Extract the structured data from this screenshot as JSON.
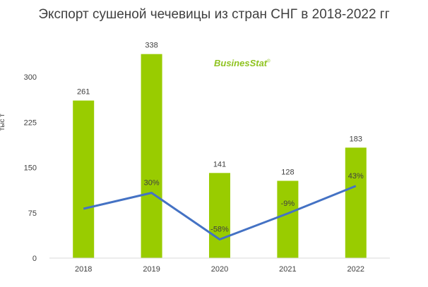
{
  "chart_data": {
    "type": "bar",
    "title": "Экспорт сушеной чечевицы из стран СНГ в 2018-2022 гг",
    "ylabel": "тыс т",
    "xlabel": "",
    "categories": [
      "2018",
      "2019",
      "2020",
      "2021",
      "2022"
    ],
    "values": [
      261,
      338,
      141,
      128,
      183
    ],
    "value_labels": [
      "261",
      "338",
      "141",
      "128",
      "183"
    ],
    "ylim": [
      0,
      375
    ],
    "yticks": [
      0,
      75,
      150,
      225,
      300
    ],
    "ytick_labels": [
      "0",
      "75",
      "150",
      "225",
      "300"
    ],
    "grid": false,
    "bar_color": "#99cc00",
    "growth_line": {
      "values": [
        null,
        30,
        -58,
        -9,
        43
      ],
      "labels": [
        "",
        "30%",
        "-58%",
        "-9%",
        "43%"
      ],
      "color": "#4472c4"
    }
  },
  "logo": {
    "text": "BusinesStat",
    "mark": "®",
    "color": "#8fc31f"
  }
}
